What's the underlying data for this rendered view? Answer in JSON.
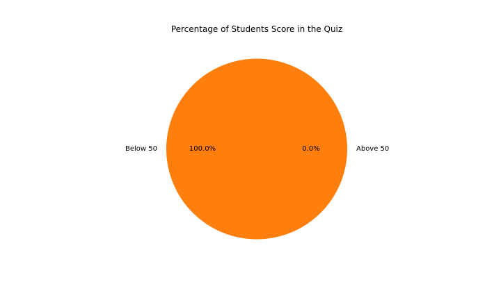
{
  "chart_data": {
    "type": "pie",
    "title": "Percentage of Students Score in the Quiz",
    "labels": [
      "Above 50",
      "Below 50"
    ],
    "values": [
      0.0,
      100.0
    ],
    "percent_labels": [
      "0.0%",
      "100.0%"
    ],
    "colors": [
      "#1f77b4",
      "#ff7f0e"
    ],
    "start_angle_deg": 0,
    "legend": "none"
  }
}
